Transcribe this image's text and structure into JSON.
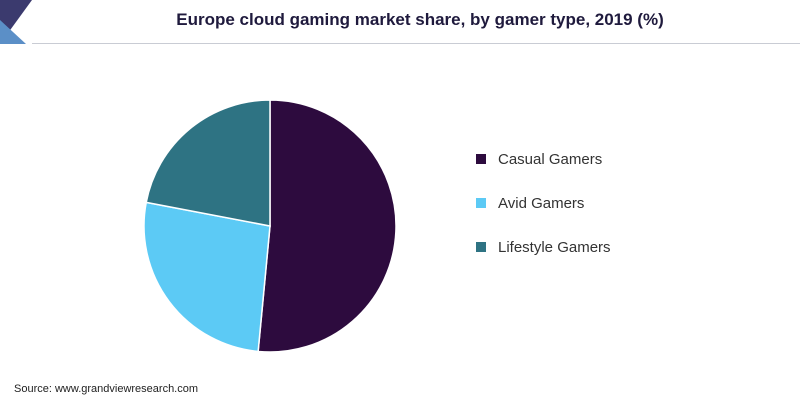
{
  "header": {
    "logo_colors": [
      "#3b3a6e",
      "#5b8fc7"
    ]
  },
  "chart_data": {
    "type": "pie",
    "title": "Europe cloud gaming market share, by gamer type, 2019 (%)",
    "categories": [
      "Casual Gamers",
      "Avid Gamers",
      "Lifestyle Gamers"
    ],
    "values": [
      51.5,
      26.5,
      22.0
    ],
    "colors": [
      "#2d0b3e",
      "#5ccaf5",
      "#2e7383"
    ],
    "legend_position": "right",
    "start_angle_deg": 0,
    "direction": "clockwise"
  },
  "footer": {
    "source": "Source: www.grandviewresearch.com"
  }
}
